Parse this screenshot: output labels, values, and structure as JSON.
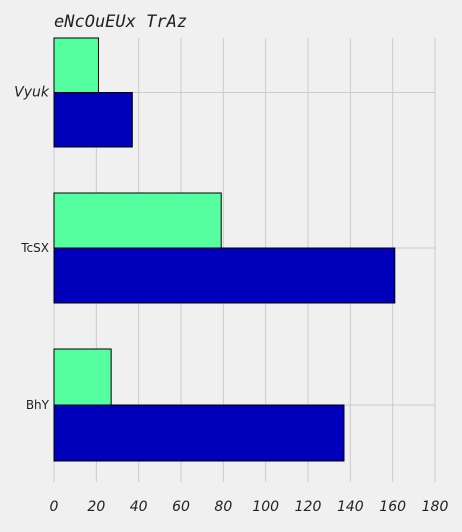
{
  "chart_data": {
    "type": "bar",
    "orientation": "horizontal",
    "title": "eNcOuEUx TrAz",
    "xlabel": "",
    "ylabel": "",
    "categories": [
      "Vyuk",
      "TcSX",
      "BhY"
    ],
    "series": [
      {
        "color": "#0000bb",
        "values": [
          37,
          161,
          137
        ]
      },
      {
        "color": "#55ff9f",
        "values": [
          21,
          79,
          27
        ]
      }
    ],
    "xlim": [
      0,
      180
    ],
    "x_ticks": [
      "0",
      "20",
      "40",
      "60",
      "80",
      "100",
      "120",
      "140",
      "160",
      "180"
    ],
    "x_tick_values": [
      0,
      20,
      40,
      60,
      80,
      100,
      120,
      140,
      160,
      180
    ],
    "grid": true,
    "legend": "none"
  }
}
